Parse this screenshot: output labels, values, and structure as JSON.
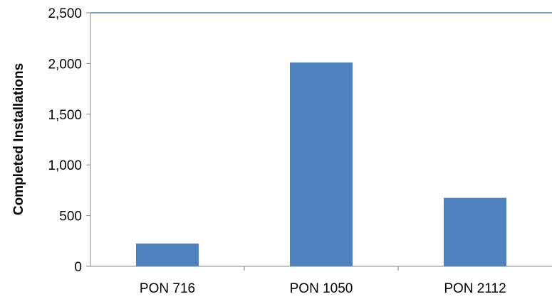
{
  "chart_data": {
    "type": "bar",
    "title": "",
    "xlabel": "",
    "ylabel": "Completed Installations",
    "categories": [
      "PON 716",
      "PON 1050",
      "PON 2112"
    ],
    "values": [
      225,
      2010,
      675
    ],
    "ylim": [
      0,
      2500
    ],
    "yticks": [
      0,
      500,
      1000,
      1500,
      2000,
      2500
    ],
    "ytick_labels": [
      "0",
      "500",
      "1,000",
      "1,500",
      "2,000",
      "2,500"
    ],
    "grid": false,
    "legend": "none",
    "bar_color": "#4F81BD",
    "axis_color": "#868686"
  }
}
